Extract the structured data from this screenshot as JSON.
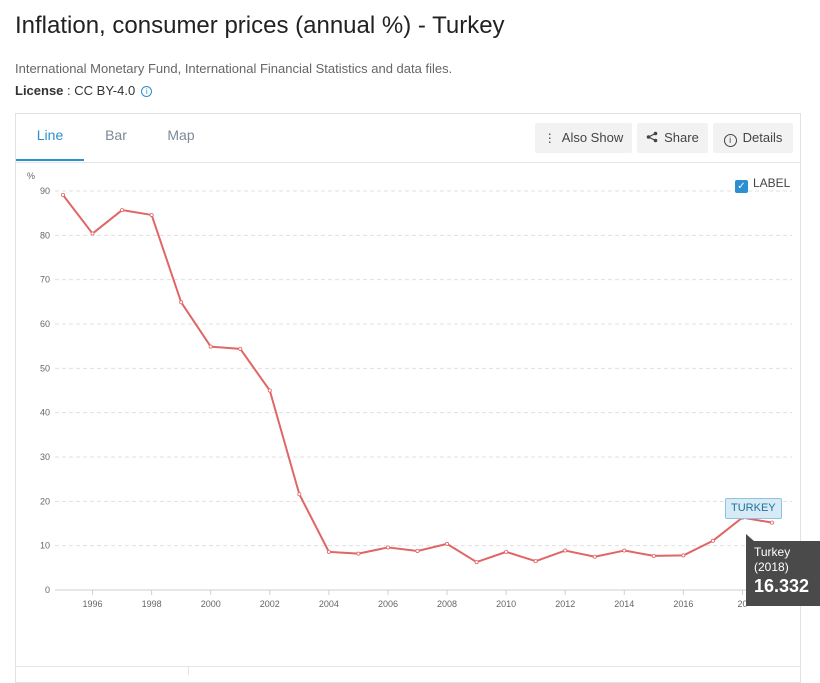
{
  "header": {
    "title": "Inflation, consumer prices (annual %) - Turkey",
    "source": "International Monetary Fund, International Financial Statistics and data files.",
    "license_label": "License",
    "license_value": " : CC BY-4.0"
  },
  "tabs": [
    {
      "label": "Line",
      "active": true
    },
    {
      "label": "Bar",
      "active": false
    },
    {
      "label": "Map",
      "active": false
    }
  ],
  "toolbar": {
    "also_show_label": "Also Show",
    "share_label": "Share",
    "details_label": "Details"
  },
  "label_toggle": {
    "label": "LABEL",
    "checked": true
  },
  "tooltip": {
    "name": "Turkey",
    "year": "(2018)",
    "value": "16.332"
  },
  "series_tag": "TURKEY",
  "colors": {
    "accent": "#2b8fd1",
    "line": "#e06666",
    "grid": "#e0e0e0"
  },
  "chart_data": {
    "type": "line",
    "ylabel": "%",
    "ylim": [
      0,
      90
    ],
    "yticks": [
      0,
      10,
      20,
      30,
      40,
      50,
      60,
      70,
      80,
      90
    ],
    "xticks": [
      "1996",
      "1998",
      "2000",
      "2002",
      "2004",
      "2006",
      "2008",
      "2010",
      "2012",
      "2014",
      "2016",
      "20"
    ],
    "grid": true,
    "series": [
      {
        "name": "TURKEY",
        "x": [
          1995,
          1996,
          1997,
          1998,
          1999,
          2000,
          2001,
          2002,
          2003,
          2004,
          2005,
          2006,
          2007,
          2008,
          2009,
          2010,
          2011,
          2012,
          2013,
          2014,
          2015,
          2016,
          2017,
          2018,
          2019
        ],
        "values": [
          89.1,
          80.4,
          85.7,
          84.6,
          64.9,
          54.9,
          54.4,
          45.0,
          21.6,
          8.6,
          8.2,
          9.6,
          8.8,
          10.4,
          6.3,
          8.6,
          6.5,
          8.9,
          7.5,
          8.9,
          7.7,
          7.8,
          11.1,
          16.332,
          15.2
        ]
      }
    ]
  }
}
